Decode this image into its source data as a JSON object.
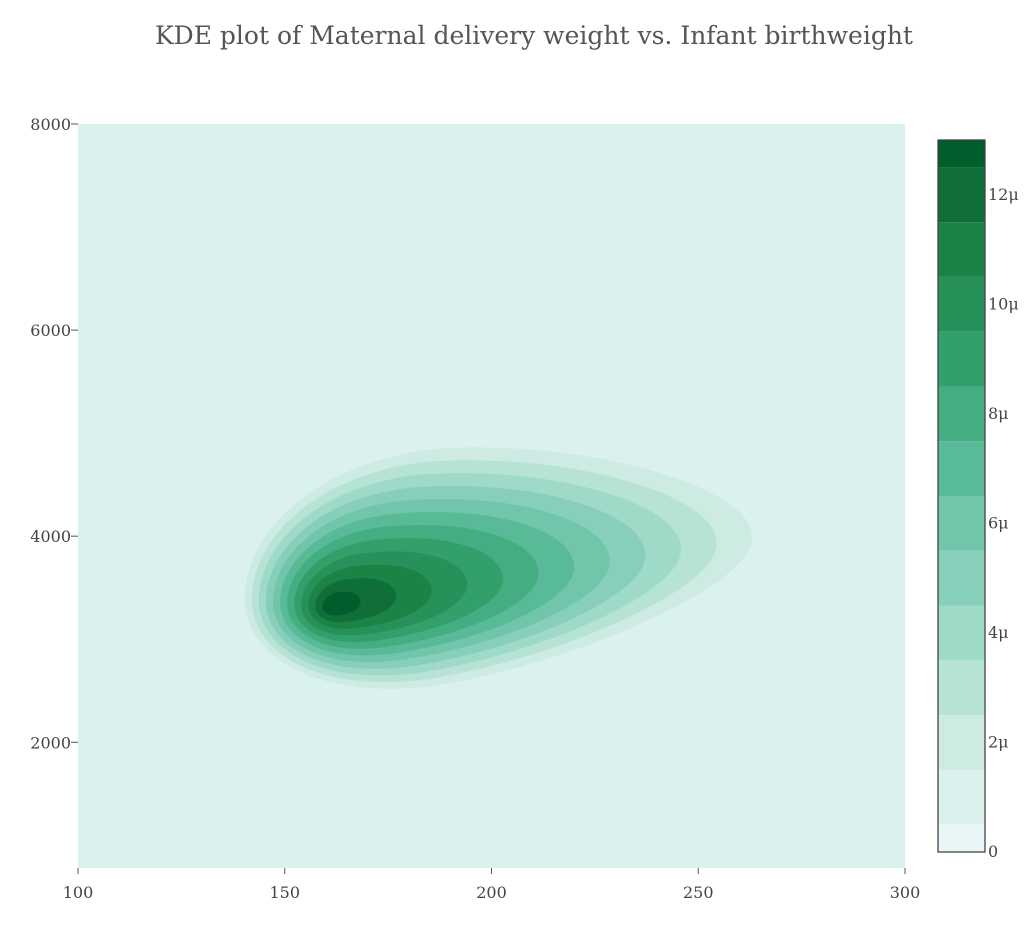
{
  "chart_data": {
    "type": "heatmap",
    "subtype": "kde-contour",
    "title": "KDE plot of Maternal delivery weight vs. Infant birthweight",
    "xlabel": "",
    "ylabel": "",
    "xlim": [
      100,
      300
    ],
    "ylim": [
      780,
      8000
    ],
    "x_ticks": [
      100,
      150,
      200,
      250,
      300
    ],
    "y_ticks": [
      2000,
      4000,
      6000,
      8000
    ],
    "density_peak": {
      "x": 163,
      "y": 3330
    },
    "contours": {
      "start": 0,
      "step": 1e-06,
      "levels": 13,
      "colors": [
        "#e8f6f8",
        "#dbf1ee",
        "#cdebe3",
        "#b6e3d6",
        "#9fd9c8",
        "#87cfba",
        "#70c5aa",
        "#58ba97",
        "#44ae82",
        "#33a06c",
        "#28915a",
        "#1c8347",
        "#106f38",
        "#005e2d"
      ]
    },
    "background_color": "#dbf1ee",
    "colorbar": {
      "ticks": [
        "0",
        "2μ",
        "4μ",
        "6μ",
        "8μ",
        "10μ",
        "12μ"
      ],
      "tick_values": [
        0,
        2e-06,
        4e-06,
        6e-06,
        8e-06,
        1e-05,
        1.2e-05
      ],
      "range": [
        0,
        1.3e-05
      ],
      "placement": "right"
    },
    "grid": false
  }
}
